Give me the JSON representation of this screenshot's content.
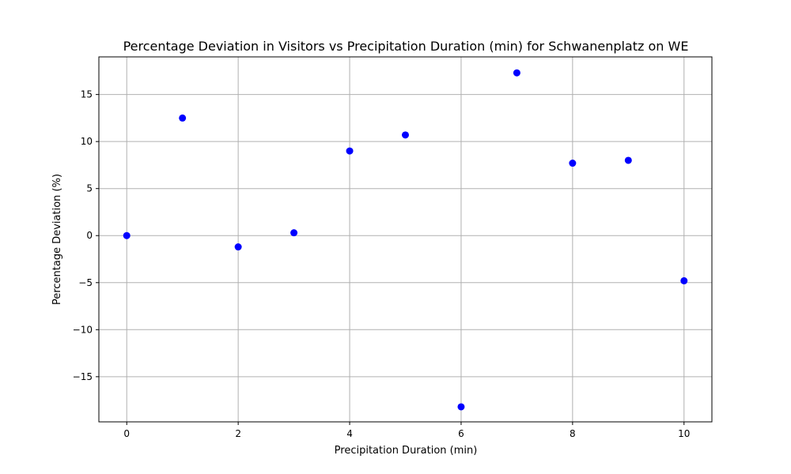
{
  "chart_data": {
    "type": "scatter",
    "title": "Percentage Deviation in Visitors vs Precipitation Duration (min) for Schwanenplatz on WE",
    "xlabel": "Precipitation Duration (min)",
    "ylabel": "Percentage Deviation (%)",
    "xlim": [
      -0.5,
      10.5
    ],
    "ylim": [
      -19.8,
      19.0
    ],
    "xticks": [
      0,
      2,
      4,
      6,
      8,
      10
    ],
    "yticks": [
      -15,
      -10,
      -5,
      0,
      5,
      10,
      15
    ],
    "ytick_labels": [
      "−15",
      "−10",
      "−5",
      "0",
      "5",
      "10",
      "15"
    ],
    "grid": true,
    "marker_color": "#0000ff",
    "x": [
      0,
      1,
      2,
      3,
      4,
      5,
      6,
      7,
      8,
      9,
      10
    ],
    "y": [
      0.0,
      12.5,
      -1.2,
      0.3,
      9.0,
      10.7,
      -18.2,
      17.3,
      7.7,
      8.0,
      -4.8
    ]
  }
}
